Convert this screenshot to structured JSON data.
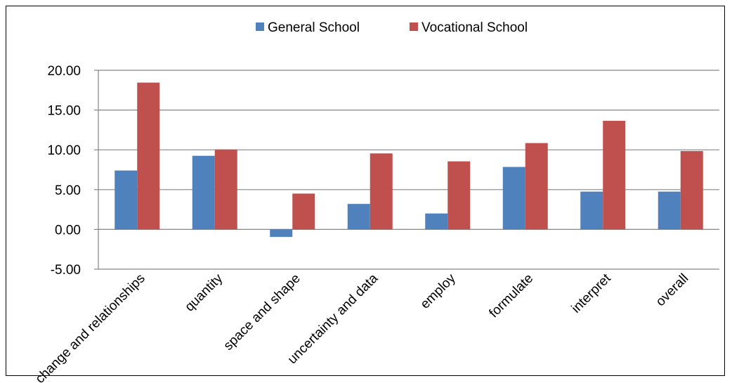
{
  "chart_data": {
    "type": "bar",
    "categories": [
      "change and relationships",
      "quantity",
      "space and shape",
      "uncertainty and data",
      "employ",
      "formulate",
      "interpret",
      "overall"
    ],
    "series": [
      {
        "name": "General School",
        "color": "#4F81BD",
        "values": [
          7.4,
          9.25,
          -0.95,
          3.2,
          2.0,
          7.85,
          4.75,
          4.75
        ]
      },
      {
        "name": "Vocational School",
        "color": "#C0504D",
        "values": [
          18.45,
          10.05,
          4.5,
          9.55,
          8.55,
          10.85,
          13.65,
          9.85
        ]
      }
    ],
    "ylim": [
      -5,
      20
    ],
    "yticks": [
      "-5.00",
      "0.00",
      "5.00",
      "10.00",
      "15.00",
      "20.00"
    ],
    "ytick_values": [
      -5,
      0,
      5,
      10,
      15,
      20
    ],
    "grid": true,
    "legend_position": "top-center",
    "title": "",
    "xlabel": "",
    "ylabel": ""
  }
}
